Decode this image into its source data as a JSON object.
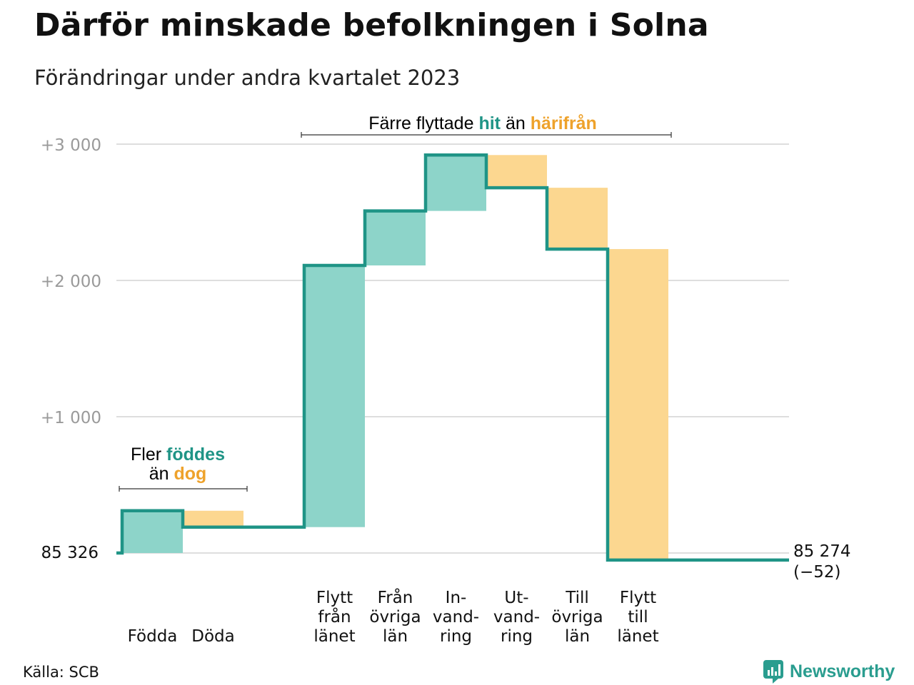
{
  "title": "Därför minskade befolkningen i Solna",
  "subtitle": "Förändringar under andra kvartalet 2023",
  "source": "Källa: SCB",
  "brand": "Newsworthy",
  "colors": {
    "teal": "#1f9486",
    "teal_fill": "#8dd4c9",
    "orange_fill": "#fcd790",
    "orange_text": "#eea22b",
    "grid": "#dedede",
    "tick": "#9a9a9a"
  },
  "annotations": {
    "births": {
      "prefix": "Fler",
      "teal_word": "föddes",
      "line2_prefix": "än",
      "orange_word": "dog"
    },
    "moves": {
      "prefix": "Färre flyttade",
      "teal_word": "hit",
      "middle": "än",
      "orange_word": "härifrån"
    }
  },
  "chart_data": {
    "type": "waterfall",
    "title": "Därför minskade befolkningen i Solna",
    "subtitle": "Förändringar under andra kvartalet 2023",
    "start_value": 85326,
    "start_label": "85  326",
    "end_value": 85274,
    "end_label": "85 274",
    "end_change_label": "(−52)",
    "yticks": [
      {
        "value": 1000,
        "label": "+1   000"
      },
      {
        "value": 2000,
        "label": "+2   000"
      },
      {
        "value": 3000,
        "label": "+3   000"
      }
    ],
    "ylim": [
      -80,
      3150
    ],
    "grid": true,
    "steps": [
      {
        "label": [
          "Födda"
        ],
        "change": 310,
        "kind": "in"
      },
      {
        "label": [
          "Döda"
        ],
        "change": -120,
        "kind": "out"
      },
      {
        "label": [],
        "change": 0,
        "kind": "gap"
      },
      {
        "label": [
          "Flytt",
          "från",
          "länet"
        ],
        "change": 1920,
        "kind": "in"
      },
      {
        "label": [
          "Från",
          "övriga",
          "län"
        ],
        "change": 400,
        "kind": "in"
      },
      {
        "label": [
          "In-",
          "vand-",
          "ring"
        ],
        "change": 410,
        "kind": "in"
      },
      {
        "label": [
          "Ut-",
          "vand-",
          "ring"
        ],
        "change": -240,
        "kind": "out"
      },
      {
        "label": [
          "Till",
          "övriga",
          "län"
        ],
        "change": -450,
        "kind": "out"
      },
      {
        "label": [
          "Flytt",
          "till",
          "länet"
        ],
        "change": -2282,
        "kind": "out"
      }
    ]
  }
}
